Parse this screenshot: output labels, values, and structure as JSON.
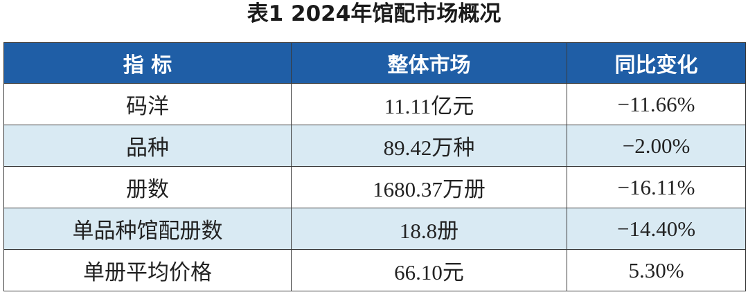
{
  "title": "表1 2024年馆配市场概况",
  "table": {
    "header": [
      "指 标",
      "整体市场",
      "同比变化"
    ],
    "rows": [
      [
        "码洋",
        "11.11亿元",
        "−11.66%"
      ],
      [
        "品种",
        "89.42万种",
        "−2.00%"
      ],
      [
        "册数",
        "1680.37万册",
        "−16.11%"
      ],
      [
        "单品种馆配册数",
        "18.8册",
        "−14.40%"
      ],
      [
        "单册平均价格",
        "66.10元",
        "5.30%"
      ]
    ]
  }
}
